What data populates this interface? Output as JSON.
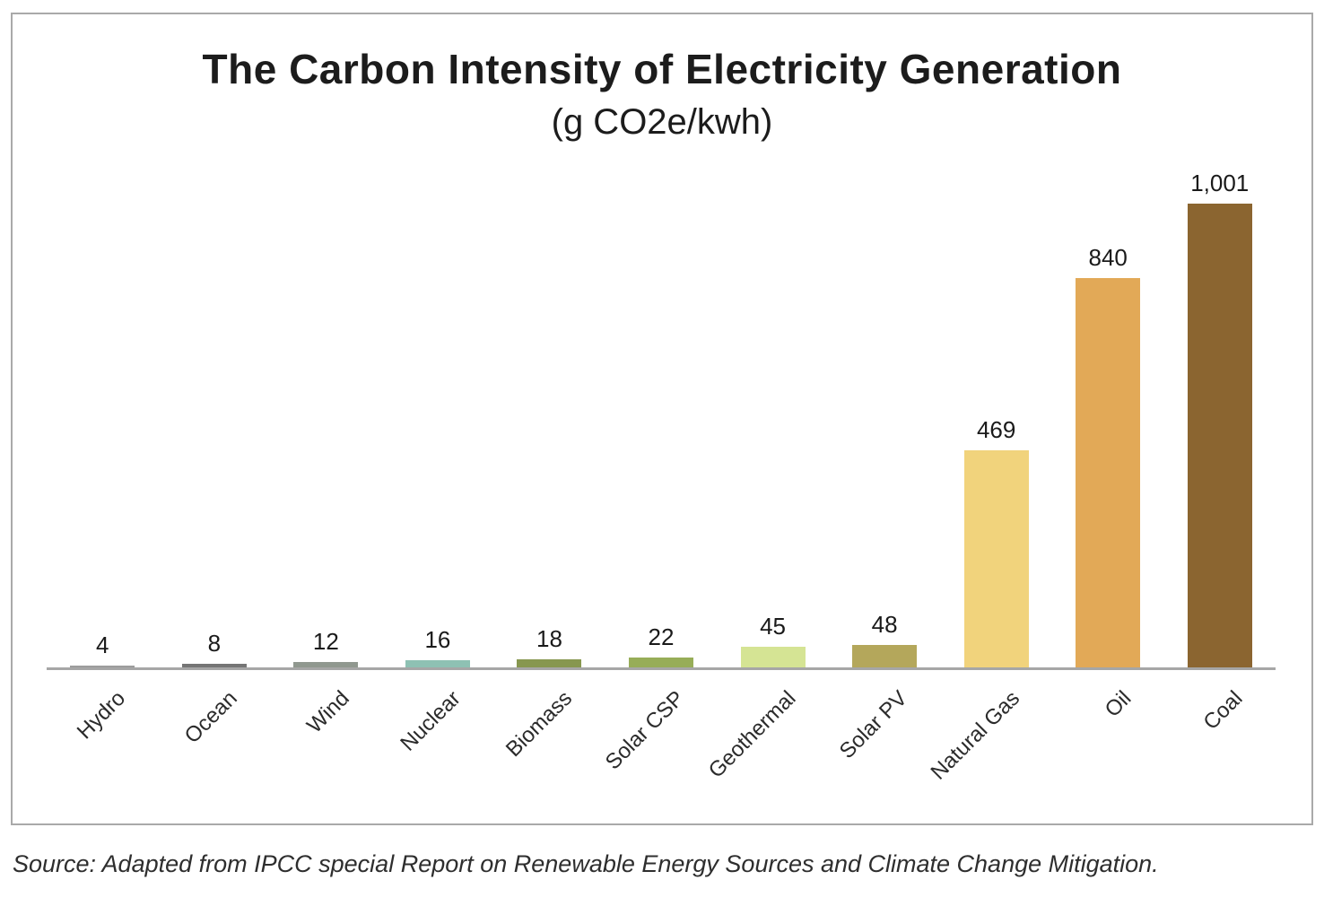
{
  "chart": {
    "title": "The Carbon Intensity of Electricity Generation",
    "subtitle": "(g CO2e/kwh)",
    "source": "Source: Adapted from IPCC special Report on Renewable Energy Sources and Climate Change Mitigation."
  },
  "chart_data": {
    "type": "bar",
    "title": "The Carbon Intensity of Electricity Generation",
    "subtitle": "(g CO2e/kwh)",
    "unit": "g CO2e/kwh",
    "categories": [
      "Hydro",
      "Ocean",
      "Wind",
      "Nuclear",
      "Biomass",
      "Solar CSP",
      "Geothermal",
      "Solar PV",
      "Natural Gas",
      "Oil",
      "Coal"
    ],
    "values": [
      4,
      8,
      12,
      16,
      18,
      22,
      45,
      48,
      469,
      840,
      1001
    ],
    "value_labels": [
      "4",
      "8",
      "12",
      "16",
      "18",
      "22",
      "45",
      "48",
      "469",
      "840",
      "1,001"
    ],
    "bar_colors": [
      "#9c9c9c",
      "#757575",
      "#90988f",
      "#8ec1b3",
      "#87974f",
      "#97ad58",
      "#d5e494",
      "#b4a75b",
      "#f1d37c",
      "#e2a957",
      "#8b6530"
    ],
    "ylim": [
      0,
      1050
    ],
    "grid": false,
    "legend": false,
    "axis_color": "#a6a6a6",
    "source": "Source: Adapted from IPCC special Report on Renewable Energy Sources and Climate Change Mitigation."
  }
}
